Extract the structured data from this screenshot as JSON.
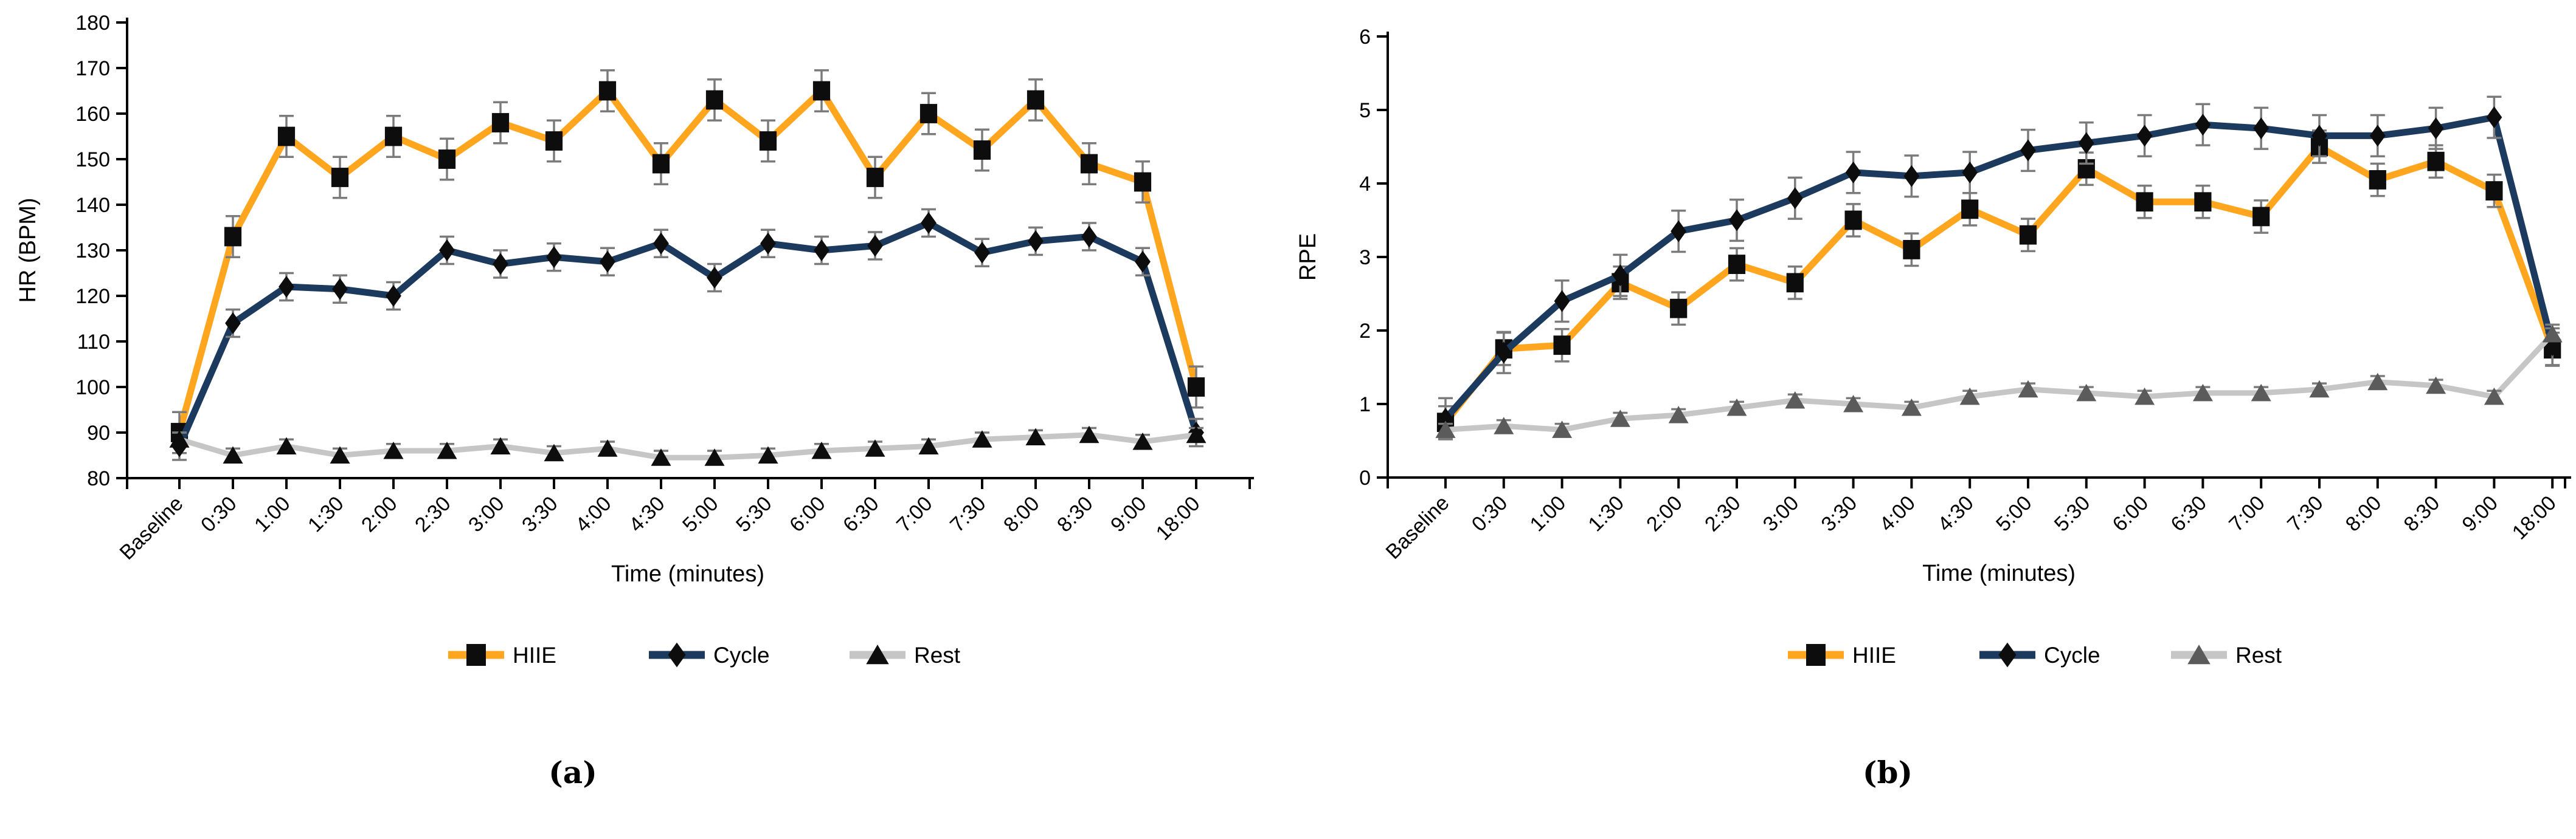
{
  "page": {
    "background": "#FFFFFF"
  },
  "captions": {
    "a": "(a)",
    "b": "(b)"
  },
  "colors": {
    "hiie_line": "#FFA61E",
    "cycle_line": "#1C395E",
    "rest_line": "#C6C6C6",
    "marker_black": "#0D0D0D",
    "rest_marker_dark_gray": "#5B5B5B",
    "error_bar": "#7B7B7B",
    "axis": "#000000"
  },
  "chart_data": [
    {
      "type": "line",
      "panel": "a",
      "title": "",
      "xlabel": "Time (minutes)",
      "ylabel": "HR (BPM)",
      "ylim": [
        80,
        180
      ],
      "ytick_step": 10,
      "grid": false,
      "legend_position": "bottom",
      "categories": [
        "Baseline",
        "0:30",
        "1:00",
        "1:30",
        "2:00",
        "2:30",
        "3:00",
        "3:30",
        "4:00",
        "4:30",
        "5:00",
        "5:30",
        "6:00",
        "6:30",
        "7:00",
        "7:30",
        "8:00",
        "8:30",
        "9:00",
        "18:00"
      ],
      "series": [
        {
          "name": "HIIE",
          "marker": "square",
          "line_color": "#FFA61E",
          "marker_color": "#0D0D0D",
          "line_width": 11,
          "error_bar": 4.5,
          "values": [
            90,
            133,
            155,
            146,
            155,
            150,
            158,
            154,
            165,
            149,
            163,
            154,
            165,
            146,
            160,
            152,
            163,
            149,
            145,
            100
          ]
        },
        {
          "name": "Cycle",
          "marker": "diamond",
          "line_color": "#1C395E",
          "marker_color": "#0D0D0D",
          "line_width": 11,
          "error_bar": 3,
          "values": [
            87,
            114,
            122,
            121.5,
            120,
            130,
            127,
            128.5,
            127.5,
            131.5,
            124,
            131.5,
            130,
            131,
            136,
            129.5,
            132,
            133,
            127.5,
            90
          ]
        },
        {
          "name": "Rest",
          "marker": "triangle",
          "line_color": "#C6C6C6",
          "marker_color": "#0D0D0D",
          "line_width": 9,
          "error_bar": 1.5,
          "values": [
            88.5,
            85,
            87,
            85,
            86,
            86,
            87,
            85.5,
            86.5,
            84.5,
            84.5,
            85,
            86,
            86.5,
            87,
            88.5,
            89,
            89.5,
            88,
            89.5
          ]
        }
      ]
    },
    {
      "type": "line",
      "panel": "b",
      "title": "",
      "xlabel": "Time (minutes)",
      "ylabel": "RPE",
      "ylim": [
        0,
        6
      ],
      "ytick_step": 1,
      "grid": false,
      "legend_position": "bottom",
      "categories": [
        "Baseline",
        "0:30",
        "1:00",
        "1:30",
        "2:00",
        "2:30",
        "3:00",
        "3:30",
        "4:00",
        "4:30",
        "5:00",
        "5:30",
        "6:00",
        "6:30",
        "7:00",
        "7:30",
        "8:00",
        "8:30",
        "9:00",
        "18:00"
      ],
      "series": [
        {
          "name": "HIIE",
          "marker": "square",
          "line_color": "#FFA61E",
          "marker_color": "#0D0D0D",
          "line_width": 11,
          "error_bar": 0.22,
          "values": [
            0.75,
            1.75,
            1.8,
            2.65,
            2.3,
            2.9,
            2.65,
            3.5,
            3.1,
            3.65,
            3.3,
            4.2,
            3.75,
            3.75,
            3.55,
            4.5,
            4.05,
            4.3,
            3.9,
            1.75
          ]
        },
        {
          "name": "Cycle",
          "marker": "diamond",
          "line_color": "#1C395E",
          "marker_color": "#0D0D0D",
          "line_width": 11,
          "error_bar": 0.28,
          "values": [
            0.8,
            1.7,
            2.4,
            2.75,
            3.35,
            3.5,
            3.8,
            4.15,
            4.1,
            4.15,
            4.45,
            4.55,
            4.65,
            4.8,
            4.75,
            4.65,
            4.65,
            4.75,
            4.9,
            1.8
          ]
        },
        {
          "name": "Rest",
          "marker": "triangle",
          "line_color": "#C6C6C6",
          "marker_color": "#5B5B5B",
          "line_width": 9,
          "error_bar": 0.08,
          "values": [
            0.65,
            0.7,
            0.65,
            0.8,
            0.85,
            0.95,
            1.05,
            1.0,
            0.95,
            1.1,
            1.2,
            1.15,
            1.1,
            1.15,
            1.15,
            1.2,
            1.3,
            1.25,
            1.1,
            1.95
          ]
        }
      ]
    }
  ]
}
